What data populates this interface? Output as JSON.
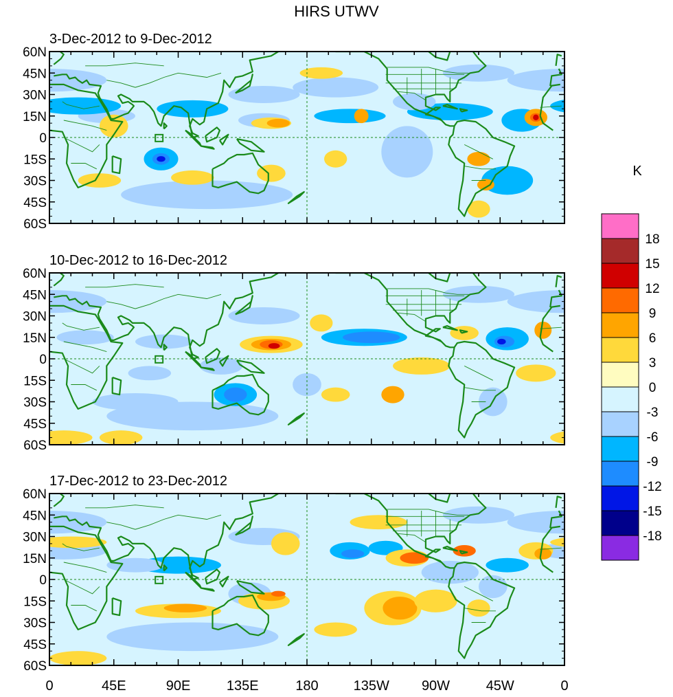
{
  "title": "HIRS UTWV",
  "panels": [
    {
      "label": "3-Dec-2012 to 9-Dec-2012"
    },
    {
      "label": "10-Dec-2012 to 16-Dec-2012"
    },
    {
      "label": "17-Dec-2012 to 23-Dec-2012"
    }
  ],
  "lat_ticks": [
    "60N",
    "45N",
    "30N",
    "15N",
    "0",
    "15S",
    "30S",
    "45S",
    "60S"
  ],
  "lon_ticks": [
    "0",
    "45E",
    "90E",
    "135E",
    "180",
    "135W",
    "90W",
    "45W",
    "0"
  ],
  "colorbar": {
    "unit": "K",
    "levels": [
      "18",
      "15",
      "12",
      "9",
      "6",
      "3",
      "0",
      "-3",
      "-6",
      "-9",
      "-12",
      "-15",
      "-18"
    ],
    "colors": [
      "#ff6ec7",
      "#a52a2a",
      "#d00000",
      "#ff6a00",
      "#ffa500",
      "#ffd93b",
      "#fffcc0",
      "#d6f4ff",
      "#a8d2ff",
      "#00b6ff",
      "#1e8cff",
      "#0016e6",
      "#00008b",
      "#8a2be2"
    ]
  },
  "palette": {
    "zero_band": "#fffcc0",
    "slight_neg": "#d6f4ff",
    "coast": "#1a8a1a"
  }
}
